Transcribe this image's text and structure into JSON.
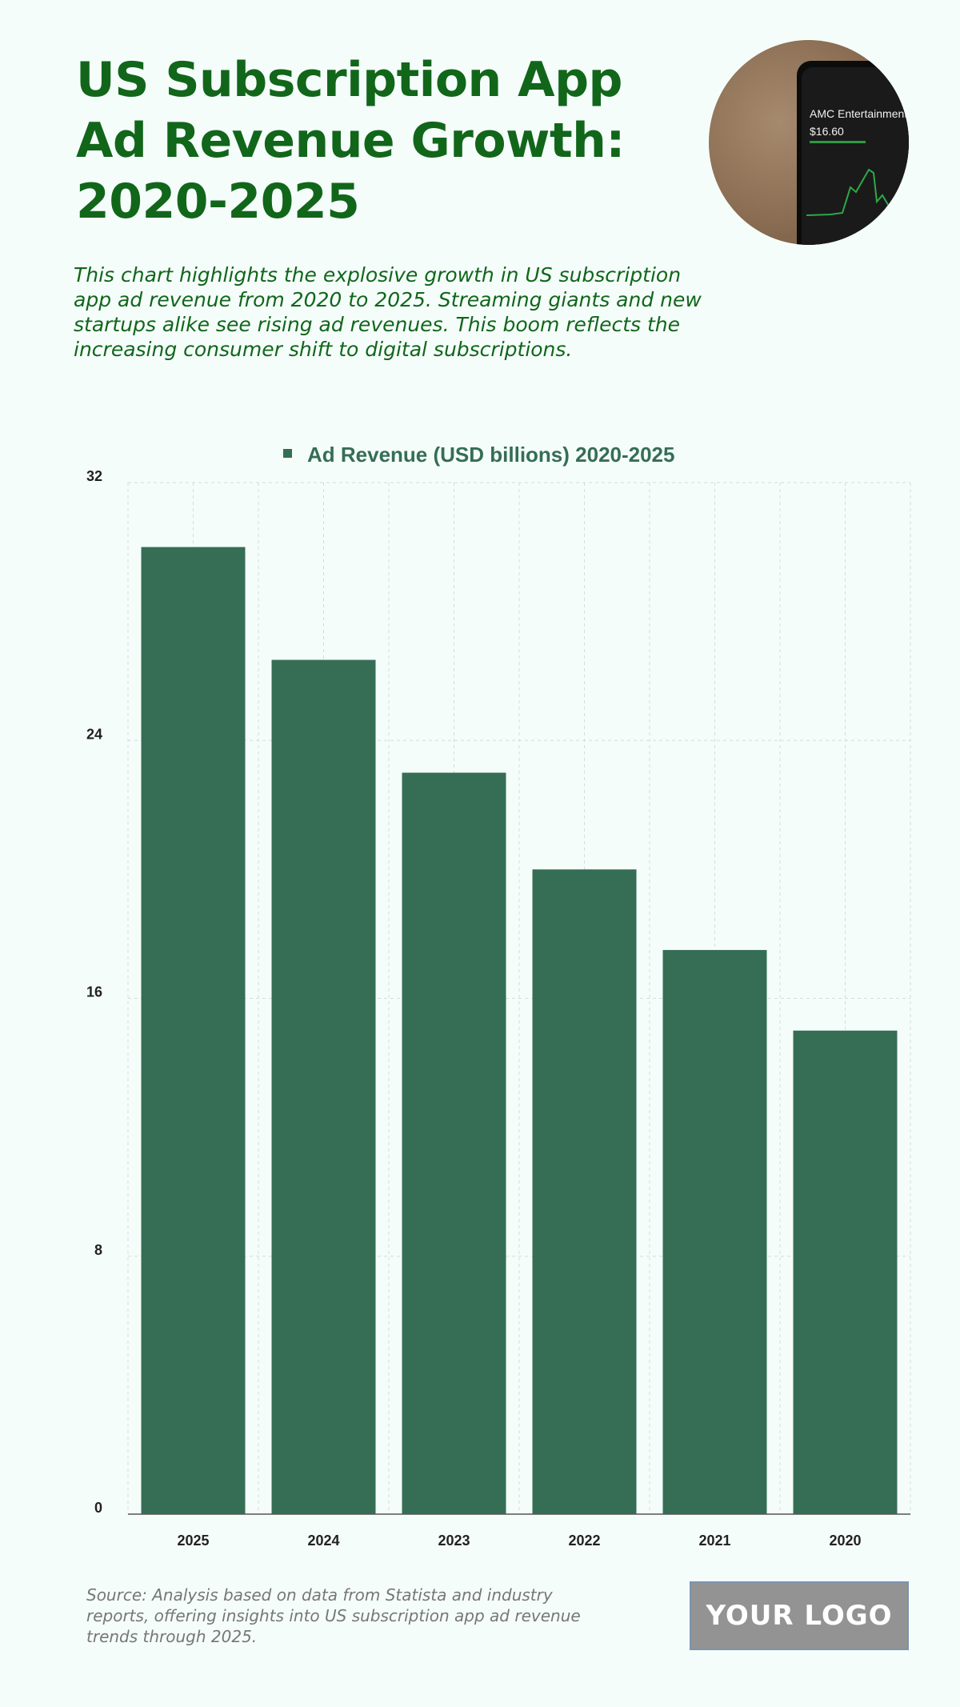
{
  "header": {
    "title": "US Subscription App Ad Revenue Growth: 2020-2025",
    "subtitle": "This chart highlights the explosive growth in US subscription app ad revenue from 2020 to 2025. Streaming giants and new startups alike see rising ad revenues. This boom reflects the increasing consumer shift to digital subscriptions."
  },
  "photo": {
    "icon": "stock-app-phone-photo",
    "screen_name": "AMC Entertainment",
    "screen_price": "$16.60"
  },
  "chart_data": {
    "type": "bar",
    "categories": [
      "2025",
      "2024",
      "2023",
      "2022",
      "2021",
      "2020"
    ],
    "series": [
      {
        "name": "Ad Revenue (USD billions) 2020-2025",
        "values": [
          30,
          26.5,
          23,
          20,
          17.5,
          15
        ]
      }
    ],
    "ylim": [
      0,
      32
    ],
    "yticks": [
      0,
      8,
      16,
      24,
      32
    ],
    "grid": true,
    "legend": "top-center",
    "bar_color": "#356e55"
  },
  "footer": {
    "source": "Source: Analysis based on data from Statista and industry reports, offering insights into US subscription app ad revenue trends through 2025.",
    "logo": "YOUR LOGO"
  }
}
